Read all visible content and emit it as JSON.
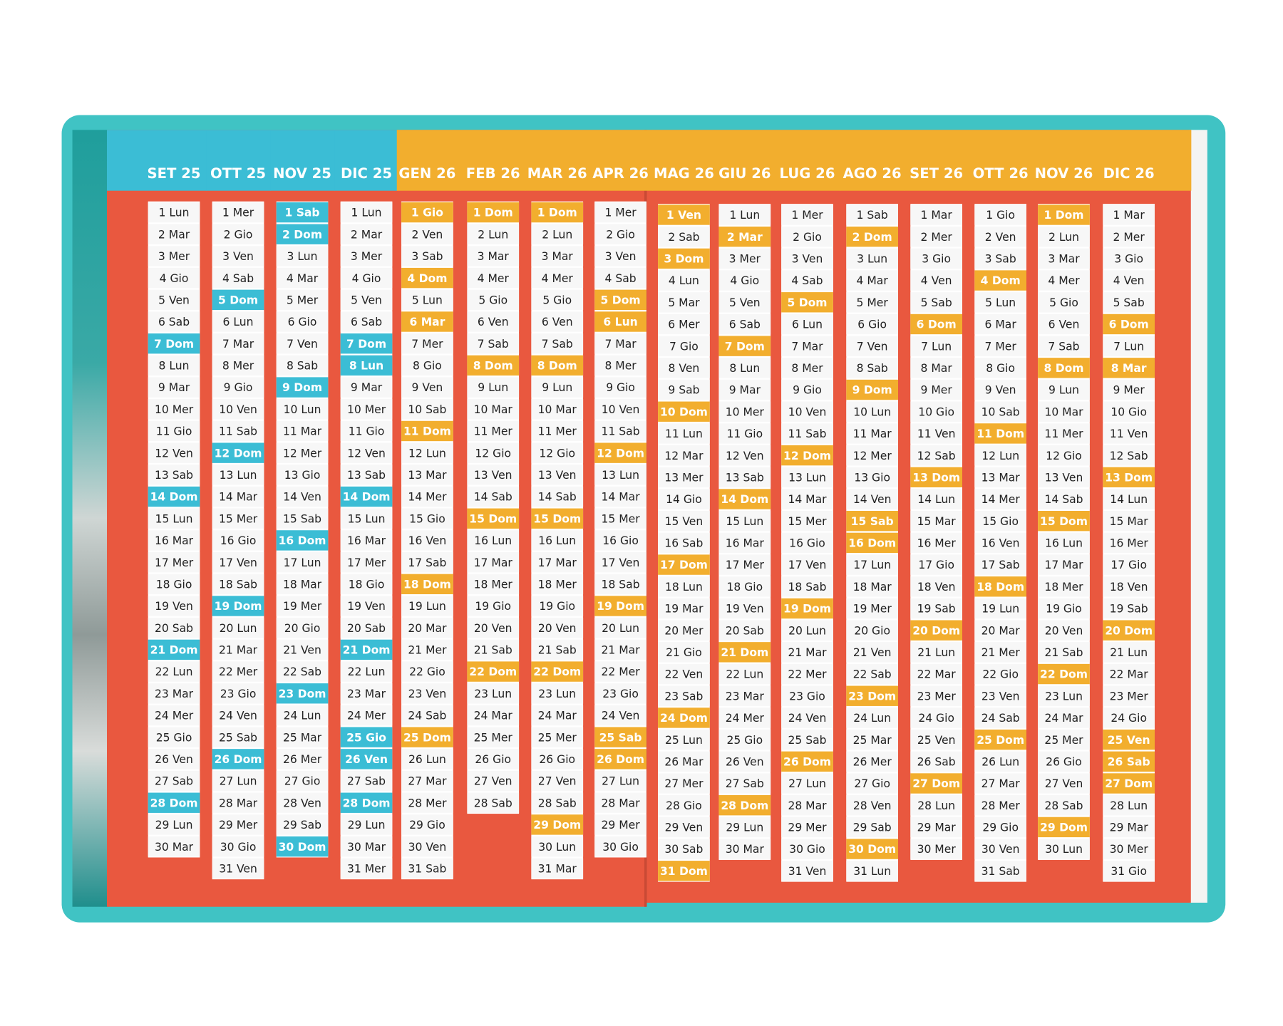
{
  "months": [
    {
      "label": "SET 25",
      "color": "#3bbdd5",
      "highlight": [
        6,
        13,
        20,
        27
      ],
      "days": [
        "1 Lun",
        "2 Mar",
        "3 Mer",
        "4 Gio",
        "5 Ven",
        "6 Sab",
        "7 Dom",
        "8 Lun",
        "9 Mar",
        "10 Mer",
        "11 Gio",
        "12 Ven",
        "13 Sab",
        "14 Dom",
        "15 Lun",
        "16 Mar",
        "17 Mer",
        "18 Gio",
        "19 Ven",
        "20 Sab",
        "21 Dom",
        "22 Lun",
        "23 Mar",
        "24 Mer",
        "25 Gio",
        "26 Ven",
        "27 Sab",
        "28 Dom",
        "29 Lun",
        "30 Mar"
      ]
    },
    {
      "label": "OTT 25",
      "color": "#3bbdd5",
      "highlight": [
        4,
        11,
        18,
        25
      ],
      "days": [
        "1 Mer",
        "2 Gio",
        "3 Ven",
        "4 Sab",
        "5 Dom",
        "6 Lun",
        "7 Mar",
        "8 Mer",
        "9 Gio",
        "10 Ven",
        "11 Sab",
        "12 Dom",
        "13 Lun",
        "14 Mar",
        "15 Mer",
        "16 Gio",
        "17 Ven",
        "18 Sab",
        "19 Dom",
        "20 Lun",
        "21 Mar",
        "22 Mer",
        "23 Gio",
        "24 Ven",
        "25 Sab",
        "26 Dom",
        "27 Lun",
        "28 Mar",
        "29 Mer",
        "30 Gio",
        "31 Ven"
      ]
    },
    {
      "label": "NOV 25",
      "color": "#3bbdd5",
      "highlight": [
        0,
        1,
        8,
        15,
        22,
        29
      ],
      "days": [
        "1 Sab",
        "2 Dom",
        "3 Lun",
        "4 Mar",
        "5 Mer",
        "6 Gio",
        "7 Ven",
        "8 Sab",
        "9 Dom",
        "10 Lun",
        "11 Mar",
        "12 Mer",
        "13 Gio",
        "14 Ven",
        "15 Sab",
        "16 Dom",
        "17 Lun",
        "18 Mar",
        "19 Mer",
        "20 Gio",
        "21 Ven",
        "22 Sab",
        "23 Dom",
        "24 Lun",
        "25 Mar",
        "26 Mer",
        "27 Gio",
        "28 Ven",
        "29 Sab",
        "30 Dom"
      ]
    },
    {
      "label": "DIC 25",
      "color": "#3bbdd5",
      "highlight": [
        6,
        7,
        13,
        20,
        24,
        25,
        27
      ],
      "days": [
        "1 Lun",
        "2 Mar",
        "3 Mer",
        "4 Gio",
        "5 Ven",
        "6 Sab",
        "7 Dom",
        "8 Lun",
        "9 Mar",
        "10 Mer",
        "11 Gio",
        "12 Ven",
        "13 Sab",
        "14 Dom",
        "15 Lun",
        "16 Mar",
        "17 Mer",
        "18 Gio",
        "19 Ven",
        "20 Sab",
        "21 Dom",
        "22 Lun",
        "23 Mar",
        "24 Mer",
        "25 Gio",
        "26 Ven",
        "27 Sab",
        "28 Dom",
        "29 Lun",
        "30 Mar",
        "31 Mer"
      ]
    },
    {
      "label": "GEN 26",
      "color": "#f2ae2e",
      "highlight": [
        0,
        3,
        5,
        10,
        17,
        24
      ],
      "days": [
        "1 Gio",
        "2 Ven",
        "3 Sab",
        "4 Dom",
        "5 Lun",
        "6 Mar",
        "7 Mer",
        "8 Gio",
        "9 Ven",
        "10 Sab",
        "11 Dom",
        "12 Lun",
        "13 Mar",
        "14 Mer",
        "15 Gio",
        "16 Ven",
        "17 Sab",
        "18 Dom",
        "19 Lun",
        "20 Mar",
        "21 Mer",
        "22 Gio",
        "23 Ven",
        "24 Sab",
        "25 Dom",
        "26 Lun",
        "27 Mar",
        "28 Mer",
        "29 Gio",
        "30 Ven",
        "31 Sab"
      ]
    },
    {
      "label": "FEB 26",
      "color": "#f2ae2e",
      "highlight": [
        0,
        7,
        14,
        21
      ],
      "days": [
        "1 Dom",
        "2 Lun",
        "3 Mar",
        "4 Mer",
        "5 Gio",
        "6 Ven",
        "7 Sab",
        "8 Dom",
        "9 Lun",
        "10 Mar",
        "11 Mer",
        "12 Gio",
        "13 Ven",
        "14 Sab",
        "15 Dom",
        "16 Lun",
        "17 Mar",
        "18 Mer",
        "19 Gio",
        "20 Ven",
        "21 Sab",
        "22 Dom",
        "23 Lun",
        "24 Mar",
        "25 Mer",
        "26 Gio",
        "27 Ven",
        "28 Sab"
      ]
    },
    {
      "label": "MAR 26",
      "color": "#f2ae2e",
      "highlight": [
        0,
        7,
        14,
        21,
        28
      ],
      "days": [
        "1 Dom",
        "2 Lun",
        "3 Mar",
        "4 Mer",
        "5 Gio",
        "6 Ven",
        "7 Sab",
        "8 Dom",
        "9 Lun",
        "10 Mar",
        "11 Mer",
        "12 Gio",
        "13 Ven",
        "14 Sab",
        "15 Dom",
        "16 Lun",
        "17 Mar",
        "18 Mer",
        "19 Gio",
        "20 Ven",
        "21 Sab",
        "22 Dom",
        "23 Lun",
        "24 Mar",
        "25 Mer",
        "26 Gio",
        "27 Ven",
        "28 Sab",
        "29 Dom",
        "30 Lun",
        "31 Mar"
      ]
    },
    {
      "label": "APR 26",
      "color": "#f2ae2e",
      "highlight": [
        4,
        5,
        11,
        18,
        24,
        25
      ],
      "days": [
        "1 Mer",
        "2 Gio",
        "3 Ven",
        "4 Sab",
        "5 Dom",
        "6 Lun",
        "7 Mar",
        "8 Mer",
        "9 Gio",
        "10 Ven",
        "11 Sab",
        "12 Dom",
        "13 Lun",
        "14 Mar",
        "15 Mer",
        "16 Gio",
        "17 Ven",
        "18 Sab",
        "19 Dom",
        "20 Lun",
        "21 Mar",
        "22 Mer",
        "23 Gio",
        "24 Ven",
        "25 Sab",
        "26 Dom",
        "27 Lun",
        "28 Mar",
        "29 Mer",
        "30 Gio"
      ]
    },
    {
      "label": "MAG 26",
      "color": "#f2ae2e",
      "highlight": [
        0,
        2,
        9,
        16,
        23,
        30
      ],
      "days": [
        "1 Ven",
        "2 Sab",
        "3 Dom",
        "4 Lun",
        "5 Mar",
        "6 Mer",
        "7 Gio",
        "8 Ven",
        "9 Sab",
        "10 Dom",
        "11 Lun",
        "12 Mar",
        "13 Mer",
        "14 Gio",
        "15 Ven",
        "16 Sab",
        "17 Dom",
        "18 Lun",
        "19 Mar",
        "20 Mer",
        "21 Gio",
        "22 Ven",
        "23 Sab",
        "24 Dom",
        "25 Lun",
        "26 Mar",
        "27 Mer",
        "28 Gio",
        "29 Ven",
        "30 Sab",
        "31 Dom"
      ]
    },
    {
      "label": "GIU 26",
      "color": "#f2ae2e",
      "highlight": [
        1,
        6,
        13,
        20,
        27
      ],
      "days": [
        "1 Lun",
        "2 Mar",
        "3 Mer",
        "4 Gio",
        "5 Ven",
        "6 Sab",
        "7 Dom",
        "8 Lun",
        "9 Mar",
        "10 Mer",
        "11 Gio",
        "12 Ven",
        "13 Sab",
        "14 Dom",
        "15 Lun",
        "16 Mar",
        "17 Mer",
        "18 Gio",
        "19 Ven",
        "20 Sab",
        "21 Dom",
        "22 Lun",
        "23 Mar",
        "24 Mer",
        "25 Gio",
        "26 Ven",
        "27 Sab",
        "28 Dom",
        "29 Lun",
        "30 Mar"
      ]
    },
    {
      "label": "LUG 26",
      "color": "#f2ae2e",
      "highlight": [
        4,
        11,
        18,
        25
      ],
      "days": [
        "1 Mer",
        "2 Gio",
        "3 Ven",
        "4 Sab",
        "5 Dom",
        "6 Lun",
        "7 Mar",
        "8 Mer",
        "9 Gio",
        "10 Ven",
        "11 Sab",
        "12 Dom",
        "13 Lun",
        "14 Mar",
        "15 Mer",
        "16 Gio",
        "17 Ven",
        "18 Sab",
        "19 Dom",
        "20 Lun",
        "21 Mar",
        "22 Mer",
        "23 Gio",
        "24 Ven",
        "25 Sab",
        "26 Dom",
        "27 Lun",
        "28 Mar",
        "29 Mer",
        "30 Gio",
        "31 Ven"
      ]
    },
    {
      "label": "AGO 26",
      "color": "#f2ae2e",
      "highlight": [
        1,
        8,
        14,
        15,
        22,
        29
      ],
      "days": [
        "1 Sab",
        "2 Dom",
        "3 Lun",
        "4 Mar",
        "5 Mer",
        "6 Gio",
        "7 Ven",
        "8 Sab",
        "9 Dom",
        "10 Lun",
        "11 Mar",
        "12 Mer",
        "13 Gio",
        "14 Ven",
        "15 Sab",
        "16 Dom",
        "17 Lun",
        "18 Mar",
        "19 Mer",
        "20 Gio",
        "21 Ven",
        "22 Sab",
        "23 Dom",
        "24 Lun",
        "25 Mar",
        "26 Mer",
        "27 Gio",
        "28 Ven",
        "29 Sab",
        "30 Dom",
        "31 Lun"
      ]
    },
    {
      "label": "SET 26",
      "color": "#f2ae2e",
      "highlight": [
        5,
        12,
        19,
        26
      ],
      "days": [
        "1 Mar",
        "2 Mer",
        "3 Gio",
        "4 Ven",
        "5 Sab",
        "6 Dom",
        "7 Lun",
        "8 Mar",
        "9 Mer",
        "10 Gio",
        "11 Ven",
        "12 Sab",
        "13 Dom",
        "14 Lun",
        "15 Mar",
        "16 Mer",
        "17 Gio",
        "18 Ven",
        "19 Sab",
        "20 Dom",
        "21 Lun",
        "22 Mar",
        "23 Mer",
        "24 Gio",
        "25 Ven",
        "26 Sab",
        "27 Dom",
        "28 Lun",
        "29 Mar",
        "30 Mer"
      ]
    },
    {
      "label": "OTT 26",
      "color": "#f2ae2e",
      "highlight": [
        3,
        10,
        17,
        24
      ],
      "days": [
        "1 Gio",
        "2 Ven",
        "3 Sab",
        "4 Dom",
        "5 Lun",
        "6 Mar",
        "7 Mer",
        "8 Gio",
        "9 Ven",
        "10 Sab",
        "11 Dom",
        "12 Lun",
        "13 Mar",
        "14 Mer",
        "15 Gio",
        "16 Ven",
        "17 Sab",
        "18 Dom",
        "19 Lun",
        "20 Mar",
        "21 Mer",
        "22 Gio",
        "23 Ven",
        "24 Sab",
        "25 Dom",
        "26 Lun",
        "27 Mar",
        "28 Mer",
        "29 Gio",
        "30 Ven",
        "31 Sab"
      ]
    },
    {
      "label": "NOV 26",
      "color": "#f2ae2e",
      "highlight": [
        0,
        7,
        14,
        21,
        28
      ],
      "days": [
        "1 Dom",
        "2 Lun",
        "3 Mar",
        "4 Mer",
        "5 Gio",
        "6 Ven",
        "7 Sab",
        "8 Dom",
        "9 Lun",
        "10 Mar",
        "11 Mer",
        "12 Gio",
        "13 Ven",
        "14 Sab",
        "15 Dom",
        "16 Lun",
        "17 Mar",
        "18 Mer",
        "19 Gio",
        "20 Ven",
        "21 Sab",
        "22 Dom",
        "23 Lun",
        "24 Mar",
        "25 Mer",
        "26 Gio",
        "27 Ven",
        "28 Sab",
        "29 Dom",
        "30 Lun"
      ]
    },
    {
      "label": "DIC 26",
      "color": "#f2ae2e",
      "highlight": [
        5,
        7,
        12,
        19,
        24,
        25,
        26
      ],
      "days": [
        "1 Mar",
        "2 Mer",
        "3 Gio",
        "4 Ven",
        "5 Sab",
        "6 Dom",
        "7 Lun",
        "8 Mar",
        "9 Mer",
        "10 Gio",
        "11 Ven",
        "12 Sab",
        "13 Dom",
        "14 Lun",
        "15 Mar",
        "16 Mer",
        "17 Gio",
        "18 Ven",
        "19 Sab",
        "20 Dom",
        "21 Lun",
        "22 Mar",
        "23 Mer",
        "24 Gio",
        "25 Ven",
        "26 Sab",
        "27 Dom",
        "28 Lun",
        "29 Mar",
        "30 Mer",
        "31 Gio"
      ]
    }
  ]
}
